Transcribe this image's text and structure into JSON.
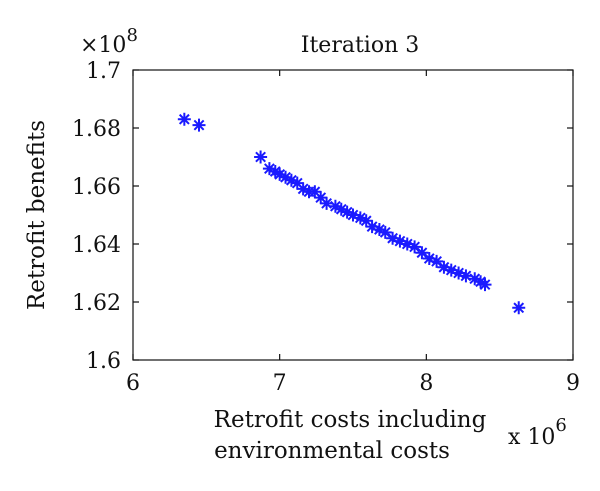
{
  "chart_data": {
    "type": "scatter",
    "title": "Iteration 3",
    "xlabel_lines": [
      "Retrofit costs including",
      "environmental costs"
    ],
    "ylabel": "Retrofit benefits",
    "x_multiplier": {
      "base": "x 10",
      "power": "6"
    },
    "y_multiplier": {
      "base": "×10",
      "power": "8"
    },
    "xlim": [
      6,
      9
    ],
    "ylim": [
      1.6,
      1.7
    ],
    "x_ticks": [
      6,
      7,
      8,
      9
    ],
    "x_tick_labels": [
      "6",
      "7",
      "8",
      "9"
    ],
    "y_ticks": [
      1.6,
      1.62,
      1.64,
      1.66,
      1.68,
      1.7
    ],
    "y_tick_labels": [
      "1.6",
      "1.62",
      "1.64",
      "1.66",
      "1.68",
      "1.7"
    ],
    "grid": false,
    "marker": "asterisk",
    "marker_color": "#1a1aff",
    "points": [
      {
        "x": 6.35,
        "y": 1.683
      },
      {
        "x": 6.45,
        "y": 1.681
      },
      {
        "x": 6.87,
        "y": 1.67
      },
      {
        "x": 6.93,
        "y": 1.666
      },
      {
        "x": 6.97,
        "y": 1.665
      },
      {
        "x": 7.0,
        "y": 1.664
      },
      {
        "x": 7.04,
        "y": 1.663
      },
      {
        "x": 7.08,
        "y": 1.662
      },
      {
        "x": 7.12,
        "y": 1.661
      },
      {
        "x": 7.16,
        "y": 1.659
      },
      {
        "x": 7.2,
        "y": 1.658
      },
      {
        "x": 7.24,
        "y": 1.658
      },
      {
        "x": 7.28,
        "y": 1.656
      },
      {
        "x": 7.32,
        "y": 1.654
      },
      {
        "x": 7.38,
        "y": 1.653
      },
      {
        "x": 7.42,
        "y": 1.652
      },
      {
        "x": 7.46,
        "y": 1.651
      },
      {
        "x": 7.5,
        "y": 1.65
      },
      {
        "x": 7.55,
        "y": 1.649
      },
      {
        "x": 7.59,
        "y": 1.648
      },
      {
        "x": 7.63,
        "y": 1.646
      },
      {
        "x": 7.68,
        "y": 1.645
      },
      {
        "x": 7.72,
        "y": 1.644
      },
      {
        "x": 7.77,
        "y": 1.642
      },
      {
        "x": 7.82,
        "y": 1.641
      },
      {
        "x": 7.87,
        "y": 1.64
      },
      {
        "x": 7.92,
        "y": 1.639
      },
      {
        "x": 7.97,
        "y": 1.637
      },
      {
        "x": 8.02,
        "y": 1.635
      },
      {
        "x": 8.07,
        "y": 1.634
      },
      {
        "x": 8.12,
        "y": 1.632
      },
      {
        "x": 8.17,
        "y": 1.631
      },
      {
        "x": 8.22,
        "y": 1.63
      },
      {
        "x": 8.27,
        "y": 1.629
      },
      {
        "x": 8.33,
        "y": 1.628
      },
      {
        "x": 8.37,
        "y": 1.627
      },
      {
        "x": 8.4,
        "y": 1.626
      },
      {
        "x": 8.63,
        "y": 1.618
      }
    ]
  }
}
